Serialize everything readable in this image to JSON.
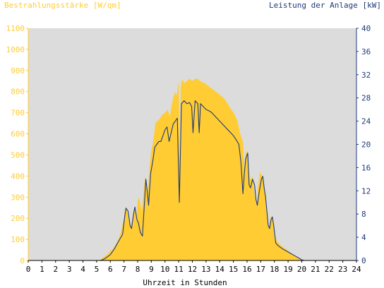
{
  "colors": {
    "irradiance": "#ffcc33",
    "power": "#1f3a78",
    "plot_background": "#dcdcdc",
    "left_axis_text": "#ffcc33",
    "right_axis_text": "#1f3a78"
  },
  "chart_data": {
    "type": "area",
    "ylabel_left": "Bestrahlungsstärke [W/qm]",
    "ylabel_right": "Leistung der Anlage [kW]",
    "xlabel": "Uhrzeit in Stunden",
    "xlim": [
      0,
      24
    ],
    "ylim_left": [
      0,
      1100
    ],
    "ylim_right": [
      0,
      40
    ],
    "x_ticks": [
      "0",
      "1",
      "2",
      "3",
      "4",
      "5",
      "6",
      "7",
      "8",
      "9",
      "10",
      "11",
      "12",
      "13",
      "14",
      "15",
      "16",
      "17",
      "18",
      "19",
      "20",
      "21",
      "22",
      "23",
      "24"
    ],
    "y_left_ticks": [
      "0",
      "100",
      "200",
      "300",
      "400",
      "500",
      "600",
      "700",
      "800",
      "900",
      "1000",
      "1100"
    ],
    "y_right_ticks": [
      "0",
      "4",
      "8",
      "12",
      "16",
      "20",
      "24",
      "28",
      "32",
      "36",
      "40"
    ],
    "grid": false,
    "series": [
      {
        "name": "Bestrahlungsstärke [W/qm]",
        "axis": "left",
        "style": "area",
        "points": [
          [
            0,
            0
          ],
          [
            5.2,
            0
          ],
          [
            5.5,
            15
          ],
          [
            5.8,
            30
          ],
          [
            6.0,
            45
          ],
          [
            6.2,
            55
          ],
          [
            6.4,
            75
          ],
          [
            6.6,
            100
          ],
          [
            6.8,
            140
          ],
          [
            7.0,
            200
          ],
          [
            7.1,
            260
          ],
          [
            7.25,
            230
          ],
          [
            7.4,
            180
          ],
          [
            7.55,
            160
          ],
          [
            7.7,
            240
          ],
          [
            7.8,
            250
          ],
          [
            7.9,
            190
          ],
          [
            8.0,
            280
          ],
          [
            8.1,
            300
          ],
          [
            8.3,
            230
          ],
          [
            8.45,
            330
          ],
          [
            8.55,
            400
          ],
          [
            8.65,
            340
          ],
          [
            8.75,
            300
          ],
          [
            8.85,
            430
          ],
          [
            9.0,
            520
          ],
          [
            9.15,
            570
          ],
          [
            9.3,
            650
          ],
          [
            9.45,
            660
          ],
          [
            9.6,
            670
          ],
          [
            9.8,
            690
          ],
          [
            10.0,
            700
          ],
          [
            10.2,
            715
          ],
          [
            10.35,
            680
          ],
          [
            10.5,
            740
          ],
          [
            10.6,
            770
          ],
          [
            10.75,
            800
          ],
          [
            10.85,
            780
          ],
          [
            11.0,
            850
          ],
          [
            11.08,
            400
          ],
          [
            11.15,
            820
          ],
          [
            11.25,
            860
          ],
          [
            11.4,
            840
          ],
          [
            11.6,
            850
          ],
          [
            11.8,
            860
          ],
          [
            12.0,
            850
          ],
          [
            12.2,
            860
          ],
          [
            12.4,
            860
          ],
          [
            12.55,
            850
          ],
          [
            12.7,
            845
          ],
          [
            12.9,
            840
          ],
          [
            13.1,
            830
          ],
          [
            13.3,
            820
          ],
          [
            13.5,
            810
          ],
          [
            13.7,
            800
          ],
          [
            13.9,
            790
          ],
          [
            14.1,
            780
          ],
          [
            14.3,
            770
          ],
          [
            14.5,
            750
          ],
          [
            14.7,
            730
          ],
          [
            14.9,
            710
          ],
          [
            15.1,
            690
          ],
          [
            15.3,
            660
          ],
          [
            15.5,
            600
          ],
          [
            15.7,
            560
          ],
          [
            15.8,
            440
          ],
          [
            15.9,
            510
          ],
          [
            16.05,
            520
          ],
          [
            16.15,
            420
          ],
          [
            16.25,
            380
          ],
          [
            16.4,
            400
          ],
          [
            16.55,
            310
          ],
          [
            16.7,
            260
          ],
          [
            16.8,
            350
          ],
          [
            16.95,
            420
          ],
          [
            17.1,
            400
          ],
          [
            17.2,
            380
          ],
          [
            17.3,
            340
          ],
          [
            17.4,
            260
          ],
          [
            17.5,
            180
          ],
          [
            17.6,
            160
          ],
          [
            17.7,
            200
          ],
          [
            17.8,
            210
          ],
          [
            17.9,
            180
          ],
          [
            18.0,
            120
          ],
          [
            18.2,
            90
          ],
          [
            18.5,
            70
          ],
          [
            18.8,
            55
          ],
          [
            19.1,
            40
          ],
          [
            19.4,
            25
          ],
          [
            19.7,
            12
          ],
          [
            20.0,
            3
          ],
          [
            20.2,
            0
          ],
          [
            24,
            0
          ]
        ]
      },
      {
        "name": "Leistung der Anlage [kW]",
        "axis": "right",
        "style": "line",
        "points": [
          [
            0,
            0
          ],
          [
            5.3,
            0
          ],
          [
            5.6,
            0.3
          ],
          [
            6.0,
            1.0
          ],
          [
            6.3,
            2.0
          ],
          [
            6.6,
            3.3
          ],
          [
            6.9,
            4.5
          ],
          [
            7.05,
            7.5
          ],
          [
            7.15,
            9.0
          ],
          [
            7.3,
            8.5
          ],
          [
            7.45,
            6.0
          ],
          [
            7.55,
            5.5
          ],
          [
            7.7,
            8.0
          ],
          [
            7.8,
            9.2
          ],
          [
            7.95,
            7.0
          ],
          [
            8.05,
            6.5
          ],
          [
            8.2,
            4.8
          ],
          [
            8.35,
            4.2
          ],
          [
            8.5,
            10.0
          ],
          [
            8.6,
            14.0
          ],
          [
            8.7,
            12.0
          ],
          [
            8.8,
            9.5
          ],
          [
            8.95,
            15.0
          ],
          [
            9.1,
            17.0
          ],
          [
            9.25,
            19.5
          ],
          [
            9.4,
            20.0
          ],
          [
            9.55,
            20.5
          ],
          [
            9.7,
            20.5
          ],
          [
            9.85,
            21.5
          ],
          [
            10.0,
            22.5
          ],
          [
            10.15,
            23.0
          ],
          [
            10.3,
            20.5
          ],
          [
            10.45,
            22.0
          ],
          [
            10.6,
            23.5
          ],
          [
            10.75,
            24.0
          ],
          [
            10.9,
            24.5
          ],
          [
            11.05,
            10.0
          ],
          [
            11.2,
            27.0
          ],
          [
            11.4,
            27.5
          ],
          [
            11.6,
            27.0
          ],
          [
            11.8,
            27.2
          ],
          [
            11.95,
            26.5
          ],
          [
            12.05,
            22.0
          ],
          [
            12.2,
            27.5
          ],
          [
            12.4,
            27.0
          ],
          [
            12.5,
            22.0
          ],
          [
            12.6,
            27.0
          ],
          [
            12.8,
            26.5
          ],
          [
            13.0,
            26.0
          ],
          [
            13.2,
            25.8
          ],
          [
            13.4,
            25.5
          ],
          [
            13.6,
            25.0
          ],
          [
            13.8,
            24.5
          ],
          [
            14.0,
            24.0
          ],
          [
            14.2,
            23.5
          ],
          [
            14.4,
            23.0
          ],
          [
            14.6,
            22.5
          ],
          [
            14.8,
            22.0
          ],
          [
            15.0,
            21.5
          ],
          [
            15.2,
            20.8
          ],
          [
            15.4,
            20.0
          ],
          [
            15.55,
            17.0
          ],
          [
            15.7,
            11.5
          ],
          [
            15.8,
            15.0
          ],
          [
            15.9,
            17.5
          ],
          [
            16.05,
            18.5
          ],
          [
            16.15,
            13.0
          ],
          [
            16.25,
            12.5
          ],
          [
            16.4,
            14.0
          ],
          [
            16.55,
            13.0
          ],
          [
            16.65,
            10.5
          ],
          [
            16.75,
            9.5
          ],
          [
            16.9,
            12.0
          ],
          [
            17.05,
            14.0
          ],
          [
            17.15,
            14.5
          ],
          [
            17.25,
            12.5
          ],
          [
            17.35,
            11.0
          ],
          [
            17.45,
            8.5
          ],
          [
            17.55,
            6.0
          ],
          [
            17.65,
            5.5
          ],
          [
            17.75,
            7.0
          ],
          [
            17.85,
            7.5
          ],
          [
            17.95,
            6.0
          ],
          [
            18.1,
            3.0
          ],
          [
            18.3,
            2.5
          ],
          [
            18.6,
            2.0
          ],
          [
            18.9,
            1.6
          ],
          [
            19.2,
            1.2
          ],
          [
            19.5,
            0.8
          ],
          [
            19.8,
            0.4
          ],
          [
            20.0,
            0.1
          ],
          [
            20.2,
            0
          ],
          [
            24,
            0
          ]
        ]
      }
    ]
  }
}
